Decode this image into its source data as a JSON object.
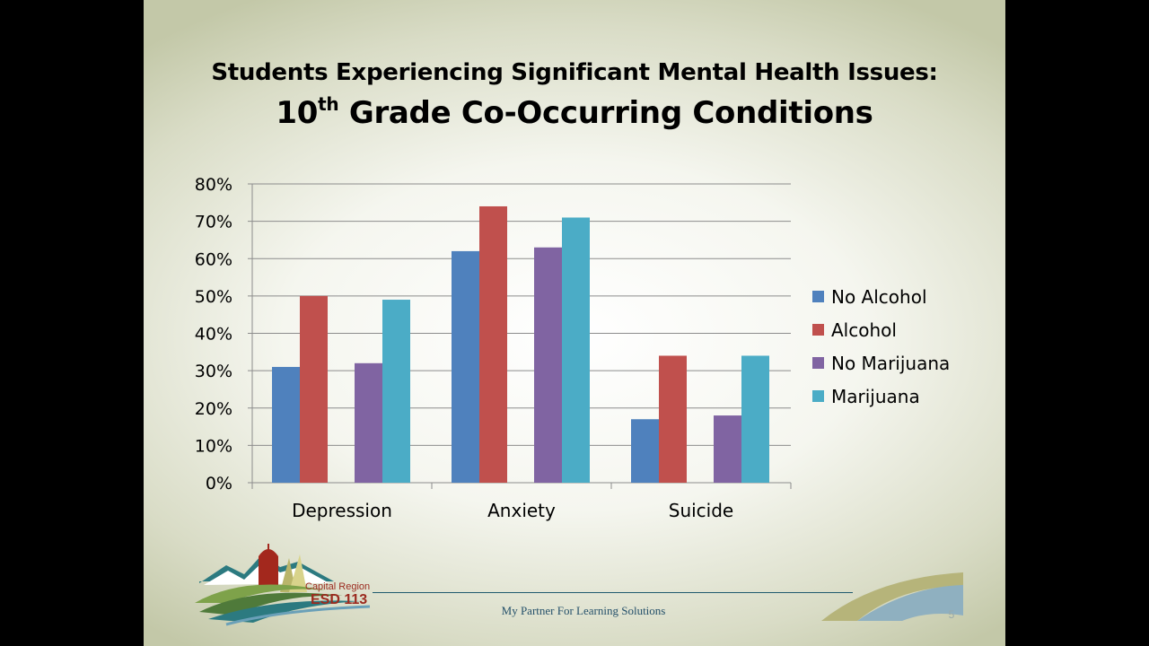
{
  "slide": {
    "title_line1": "Students Experiencing Significant Mental Health Issues:",
    "title_line2_prefix": "10",
    "title_line2_sup": "th",
    "title_line2_rest": " Grade Co-Occurring Conditions",
    "tagline": "My Partner For Learning Solutions",
    "slide_number": "5"
  },
  "logo": {
    "line1": "Capital Region",
    "line2": "ESD 113"
  },
  "colors": {
    "no_alcohol": "#4f81bd",
    "alcohol": "#c0504d",
    "no_marijuana": "#8064a2",
    "marijuana": "#4bacc6",
    "gridline": "#8c8c8c"
  },
  "chart_data": {
    "type": "bar",
    "title": "",
    "xlabel": "",
    "ylabel": "",
    "categories": [
      "Depression",
      "Anxiety",
      "Suicide"
    ],
    "ylim": [
      0,
      0.8
    ],
    "yticks": [
      "0%",
      "10%",
      "20%",
      "30%",
      "40%",
      "50%",
      "60%",
      "70%",
      "80%"
    ],
    "grid": true,
    "legend_position": "right",
    "series": [
      {
        "name": "No Alcohol",
        "color": "#4f81bd",
        "values": [
          0.31,
          0.62,
          0.17
        ]
      },
      {
        "name": "Alcohol",
        "color": "#c0504d",
        "values": [
          0.5,
          0.74,
          0.34
        ]
      },
      {
        "name": "No Marijuana",
        "color": "#8064a2",
        "values": [
          0.32,
          0.63,
          0.18
        ]
      },
      {
        "name": "Marijuana",
        "color": "#4bacc6",
        "values": [
          0.49,
          0.71,
          0.34
        ]
      }
    ]
  }
}
